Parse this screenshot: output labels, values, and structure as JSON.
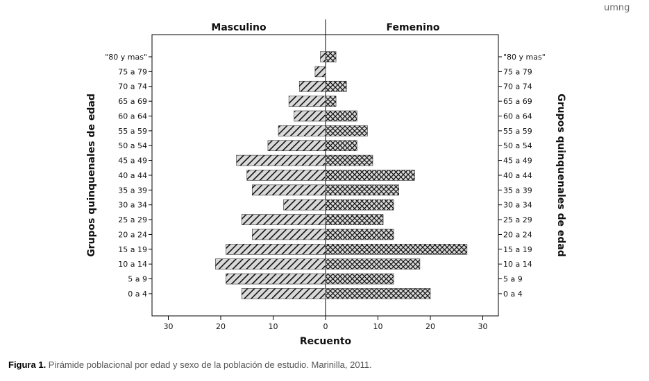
{
  "header": {
    "logo_text": "umng"
  },
  "caption": {
    "label": "Figura 1.",
    "text": " Pirámide poblacional por edad y sexo de la población de estudio. Marinilla, 2011."
  },
  "chart_data": {
    "type": "bar",
    "orientation": "horizontal",
    "subtype": "population-pyramid",
    "categories": [
      "\"80 y mas\"",
      "75 a 79",
      "70 a 74",
      "65 a 69",
      "60 a 64",
      "55 a 59",
      "50 a 54",
      "45 a 49",
      "40 a 44",
      "35 a 39",
      "30 a 34",
      "25 a 29",
      "20 a 24",
      "15 a 19",
      "10 a 14",
      "5 a 9",
      "0 a 4"
    ],
    "series": [
      {
        "name": "Masculino",
        "side": "left",
        "values": [
          1,
          2,
          5,
          7,
          6,
          9,
          11,
          17,
          15,
          14,
          8,
          16,
          14,
          19,
          21,
          19,
          16
        ]
      },
      {
        "name": "Femenino",
        "side": "right",
        "values": [
          2,
          0,
          4,
          2,
          6,
          8,
          6,
          9,
          17,
          14,
          13,
          11,
          13,
          27,
          18,
          13,
          20
        ]
      }
    ],
    "xlabel": "Recuento",
    "ylabel_left": "Grupos quinquenales de edad",
    "ylabel_right": "Grupos quinquenales de edad",
    "xlim": [
      -33,
      33
    ],
    "xticks": [
      30,
      20,
      10,
      0,
      10,
      20,
      30
    ],
    "grid": false,
    "colors": {
      "bar_fill": "#d9d9d9",
      "bar_pattern": "#111111",
      "axis": "#000000"
    }
  }
}
